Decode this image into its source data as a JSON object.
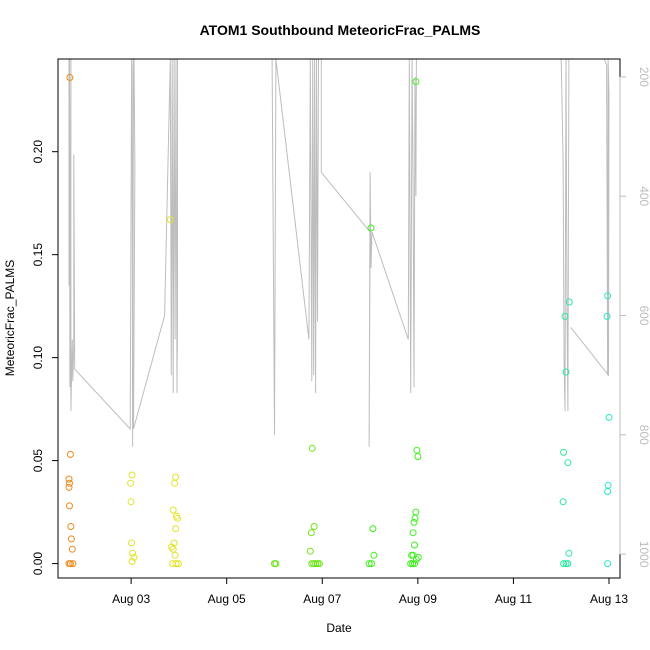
{
  "chart_data": {
    "type": "scatter",
    "title": "ATOM1 Southbound MeteoricFrac_PALMS",
    "xlabel": "Date",
    "ylabel": "MeteoricFrac_PALMS",
    "xlim": [
      1.47,
      13.23
    ],
    "ylim": [
      -0.007,
      0.245
    ],
    "x_ticks": [
      {
        "value": 3,
        "label": "Aug 03"
      },
      {
        "value": 5,
        "label": "Aug 05"
      },
      {
        "value": 7,
        "label": "Aug 07"
      },
      {
        "value": 9,
        "label": "Aug 09"
      },
      {
        "value": 11,
        "label": "Aug 11"
      },
      {
        "value": 13,
        "label": "Aug 13"
      }
    ],
    "y_ticks": [
      {
        "value": 0.0,
        "label": "0.00"
      },
      {
        "value": 0.05,
        "label": "0.05"
      },
      {
        "value": 0.1,
        "label": "0.10"
      },
      {
        "value": 0.15,
        "label": "0.15"
      },
      {
        "value": 0.2,
        "label": "0.20"
      }
    ],
    "y2_range": [
      1040,
      170
    ],
    "y2_ticks": [
      {
        "value": 200,
        "label": "200"
      },
      {
        "value": 400,
        "label": "400"
      },
      {
        "value": 600,
        "label": "600"
      },
      {
        "value": 800,
        "label": "800"
      },
      {
        "value": 1000,
        "label": "1000"
      }
    ],
    "points": [
      {
        "x": 1.72,
        "y": 0.236,
        "color": "#ef8a1a"
      },
      {
        "x": 1.73,
        "y": 0.053,
        "color": "#ef8a1a"
      },
      {
        "x": 1.7,
        "y": 0.041,
        "color": "#ef8a1a"
      },
      {
        "x": 1.71,
        "y": 0.039,
        "color": "#ef8a1a"
      },
      {
        "x": 1.7,
        "y": 0.037,
        "color": "#ef8a1a"
      },
      {
        "x": 1.71,
        "y": 0.028,
        "color": "#ef8a1a"
      },
      {
        "x": 1.74,
        "y": 0.018,
        "color": "#ef8a1a"
      },
      {
        "x": 1.75,
        "y": 0.012,
        "color": "#ef8a1a"
      },
      {
        "x": 1.77,
        "y": 0.007,
        "color": "#ef8a1a"
      },
      {
        "x": 1.7,
        "y": 0.0,
        "color": "#ef8a1a"
      },
      {
        "x": 1.73,
        "y": 0.0,
        "color": "#ef8a1a"
      },
      {
        "x": 1.78,
        "y": 0.0,
        "color": "#ef8a1a"
      },
      {
        "x": 3.02,
        "y": 0.043,
        "color": "#e3e32a"
      },
      {
        "x": 2.99,
        "y": 0.039,
        "color": "#e3e32a"
      },
      {
        "x": 3.0,
        "y": 0.03,
        "color": "#e3e32a"
      },
      {
        "x": 3.01,
        "y": 0.01,
        "color": "#e3e32a"
      },
      {
        "x": 3.03,
        "y": 0.005,
        "color": "#e3e32a"
      },
      {
        "x": 3.06,
        "y": 0.003,
        "color": "#e3e32a"
      },
      {
        "x": 3.02,
        "y": 0.001,
        "color": "#e3e32a"
      },
      {
        "x": 3.82,
        "y": 0.167,
        "color": "#e3e32a"
      },
      {
        "x": 3.93,
        "y": 0.042,
        "color": "#e3e32a"
      },
      {
        "x": 3.91,
        "y": 0.039,
        "color": "#e3e32a"
      },
      {
        "x": 3.88,
        "y": 0.026,
        "color": "#e3e32a"
      },
      {
        "x": 3.95,
        "y": 0.023,
        "color": "#e3e32a"
      },
      {
        "x": 3.97,
        "y": 0.022,
        "color": "#e3e32a"
      },
      {
        "x": 3.93,
        "y": 0.017,
        "color": "#e3e32a"
      },
      {
        "x": 3.9,
        "y": 0.01,
        "color": "#e3e32a"
      },
      {
        "x": 3.85,
        "y": 0.008,
        "color": "#e3e32a"
      },
      {
        "x": 3.88,
        "y": 0.007,
        "color": "#e3e32a"
      },
      {
        "x": 3.92,
        "y": 0.004,
        "color": "#e3e32a"
      },
      {
        "x": 3.87,
        "y": 0.0,
        "color": "#e3e32a"
      },
      {
        "x": 3.94,
        "y": 0.0,
        "color": "#e3e32a"
      },
      {
        "x": 3.99,
        "y": 0.0,
        "color": "#e3e32a"
      },
      {
        "x": 6.0,
        "y": 0.0,
        "color": "#6ee51a"
      },
      {
        "x": 6.03,
        "y": 0.0,
        "color": "#6ee51a"
      },
      {
        "x": 6.79,
        "y": 0.056,
        "color": "#6ee51a"
      },
      {
        "x": 6.83,
        "y": 0.018,
        "color": "#6ee51a"
      },
      {
        "x": 6.77,
        "y": 0.015,
        "color": "#6ee51a"
      },
      {
        "x": 6.75,
        "y": 0.006,
        "color": "#6ee51a"
      },
      {
        "x": 6.78,
        "y": 0.0,
        "color": "#6ee51a"
      },
      {
        "x": 6.82,
        "y": 0.0,
        "color": "#6ee51a"
      },
      {
        "x": 6.86,
        "y": 0.0,
        "color": "#6ee51a"
      },
      {
        "x": 6.9,
        "y": 0.0,
        "color": "#6ee51a"
      },
      {
        "x": 6.94,
        "y": 0.0,
        "color": "#6ee51a"
      },
      {
        "x": 8.02,
        "y": 0.163,
        "color": "#3ef01c"
      },
      {
        "x": 8.06,
        "y": 0.017,
        "color": "#3ef01c"
      },
      {
        "x": 8.08,
        "y": 0.004,
        "color": "#3ef01c"
      },
      {
        "x": 7.98,
        "y": 0.0,
        "color": "#3ef01c"
      },
      {
        "x": 8.03,
        "y": 0.0,
        "color": "#3ef01c"
      },
      {
        "x": 8.96,
        "y": 0.234,
        "color": "#3ef01c"
      },
      {
        "x": 8.98,
        "y": 0.055,
        "color": "#3ef01c"
      },
      {
        "x": 9.0,
        "y": 0.052,
        "color": "#3ef01c"
      },
      {
        "x": 8.96,
        "y": 0.025,
        "color": "#3ef01c"
      },
      {
        "x": 8.94,
        "y": 0.022,
        "color": "#3ef01c"
      },
      {
        "x": 8.92,
        "y": 0.02,
        "color": "#3ef01c"
      },
      {
        "x": 8.9,
        "y": 0.015,
        "color": "#3ef01c"
      },
      {
        "x": 8.93,
        "y": 0.009,
        "color": "#3ef01c"
      },
      {
        "x": 8.87,
        "y": 0.004,
        "color": "#3ef01c"
      },
      {
        "x": 8.9,
        "y": 0.004,
        "color": "#3ef01c"
      },
      {
        "x": 9.01,
        "y": 0.003,
        "color": "#3ef01c"
      },
      {
        "x": 8.97,
        "y": 0.002,
        "color": "#3ef01c"
      },
      {
        "x": 8.85,
        "y": 0.0,
        "color": "#3ef01c"
      },
      {
        "x": 8.89,
        "y": 0.0,
        "color": "#3ef01c"
      },
      {
        "x": 8.93,
        "y": 0.0,
        "color": "#3ef01c"
      },
      {
        "x": 12.08,
        "y": 0.12,
        "color": "#2ce8a0"
      },
      {
        "x": 12.17,
        "y": 0.127,
        "color": "#2ce8a0"
      },
      {
        "x": 12.1,
        "y": 0.093,
        "color": "#2ce8a0"
      },
      {
        "x": 12.05,
        "y": 0.054,
        "color": "#2ce8a0"
      },
      {
        "x": 12.14,
        "y": 0.049,
        "color": "#2ce8a0"
      },
      {
        "x": 12.04,
        "y": 0.03,
        "color": "#2ce8a0"
      },
      {
        "x": 12.16,
        "y": 0.005,
        "color": "#2ce8a0"
      },
      {
        "x": 12.05,
        "y": 0.0,
        "color": "#2ce8a0"
      },
      {
        "x": 12.1,
        "y": 0.0,
        "color": "#2ce8a0"
      },
      {
        "x": 12.14,
        "y": 0.0,
        "color": "#2ce8a0"
      },
      {
        "x": 12.97,
        "y": 0.13,
        "color": "#2ce8c8"
      },
      {
        "x": 12.96,
        "y": 0.12,
        "color": "#2ce8c8"
      },
      {
        "x": 13.0,
        "y": 0.071,
        "color": "#2ce8c8"
      },
      {
        "x": 12.98,
        "y": 0.038,
        "color": "#2ce8c8"
      },
      {
        "x": 12.97,
        "y": 0.035,
        "color": "#2ce8c8"
      },
      {
        "x": 12.97,
        "y": 0.0,
        "color": "#2ce8c8"
      }
    ],
    "pressure_line": {
      "color": "#bdbdbd",
      "axis": "right",
      "points": [
        [
          1.7,
          170
        ],
        [
          1.7,
          550
        ],
        [
          1.71,
          170
        ],
        [
          1.72,
          720
        ],
        [
          1.74,
          170
        ],
        [
          1.74,
          760
        ],
        [
          1.77,
          640
        ],
        [
          1.78,
          710
        ],
        [
          1.8,
          650
        ],
        [
          1.8,
          330
        ],
        [
          1.82,
          690
        ],
        [
          2.98,
          790
        ],
        [
          3.01,
          170
        ],
        [
          3.02,
          180
        ],
        [
          3.03,
          820
        ],
        [
          3.05,
          170
        ],
        [
          3.06,
          170
        ],
        [
          3.08,
          350
        ],
        [
          3.05,
          790
        ],
        [
          3.7,
          600
        ],
        [
          3.82,
          170
        ],
        [
          3.84,
          700
        ],
        [
          3.86,
          170
        ],
        [
          3.88,
          730
        ],
        [
          3.9,
          170
        ],
        [
          3.92,
          640
        ],
        [
          3.94,
          170
        ],
        [
          3.96,
          730
        ],
        [
          3.97,
          600
        ],
        [
          3.97,
          170
        ],
        [
          5.95,
          170
        ],
        [
          6.0,
          800
        ],
        [
          6.03,
          170
        ],
        [
          6.72,
          640
        ],
        [
          6.75,
          170
        ],
        [
          6.78,
          710
        ],
        [
          6.8,
          170
        ],
        [
          6.82,
          700
        ],
        [
          6.84,
          170
        ],
        [
          6.86,
          730
        ],
        [
          6.88,
          170
        ],
        [
          6.9,
          610
        ],
        [
          6.92,
          170
        ],
        [
          6.98,
          170
        ],
        [
          6.98,
          360
        ],
        [
          8.0,
          460
        ],
        [
          7.98,
          820
        ],
        [
          8.0,
          360
        ],
        [
          8.02,
          520
        ],
        [
          8.04,
          460
        ],
        [
          8.8,
          640
        ],
        [
          8.82,
          170
        ],
        [
          8.85,
          730
        ],
        [
          8.88,
          170
        ],
        [
          8.9,
          380
        ],
        [
          8.92,
          720
        ],
        [
          8.94,
          200
        ],
        [
          8.96,
          400
        ],
        [
          8.97,
          170
        ],
        [
          8.97,
          170
        ],
        [
          9.0,
          170
        ],
        [
          9.02,
          170
        ],
        [
          12.0,
          170
        ],
        [
          12.04,
          340
        ],
        [
          12.06,
          680
        ],
        [
          12.08,
          760
        ],
        [
          12.1,
          170
        ],
        [
          12.12,
          590
        ],
        [
          12.14,
          760
        ],
        [
          12.16,
          170
        ],
        [
          12.9,
          170
        ],
        [
          12.95,
          180
        ],
        [
          12.97,
          700
        ],
        [
          12.98,
          170
        ],
        [
          13.0,
          230
        ],
        [
          12.99,
          700
        ],
        [
          12.2,
          620
        ]
      ]
    }
  }
}
